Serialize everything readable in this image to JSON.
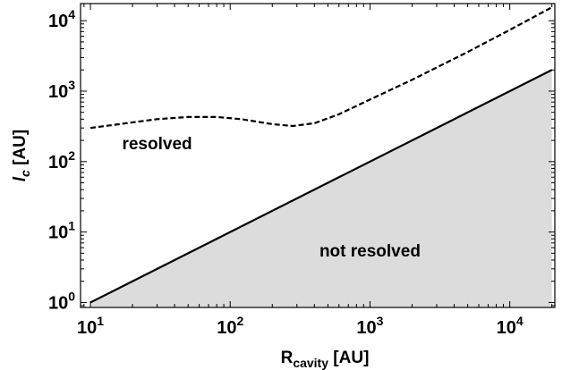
{
  "chart_data": {
    "type": "line",
    "xscale": "log",
    "yscale": "log",
    "xlim": [
      8.5,
      21000
    ],
    "ylim": [
      0.85,
      17500
    ],
    "xlabel": {
      "main": "R",
      "sub": "cavity",
      "unit": " [AU]"
    },
    "ylabel": {
      "main": "l",
      "sub": "c",
      "unit": " [AU]"
    },
    "x_ticks": [
      {
        "value": 10,
        "base": "10",
        "exp": "1"
      },
      {
        "value": 100,
        "base": "10",
        "exp": "2"
      },
      {
        "value": 1000,
        "base": "10",
        "exp": "3"
      },
      {
        "value": 10000,
        "base": "10",
        "exp": "4"
      }
    ],
    "y_ticks": [
      {
        "value": 1,
        "base": "10",
        "exp": "0"
      },
      {
        "value": 10,
        "base": "10",
        "exp": "1"
      },
      {
        "value": 100,
        "base": "10",
        "exp": "2"
      },
      {
        "value": 1000,
        "base": "10",
        "exp": "3"
      },
      {
        "value": 10000,
        "base": "10",
        "exp": "4"
      }
    ],
    "series": [
      {
        "style": "solid",
        "color": "#000000",
        "x": [
          10,
          20000
        ],
        "y": [
          1,
          2000
        ]
      },
      {
        "style": "dashed",
        "color": "#000000",
        "x": [
          10,
          20,
          30,
          50,
          80,
          120,
          200,
          280,
          400,
          600,
          1000,
          2000,
          5000,
          10000,
          20000
        ],
        "y": [
          300,
          360,
          400,
          430,
          430,
          400,
          340,
          320,
          350,
          470,
          760,
          1450,
          3600,
          7400,
          15500
        ]
      }
    ],
    "shaded_region": {
      "below_series": 0,
      "color": "#dcdcdc"
    },
    "annotations": [
      {
        "text": "resolved",
        "x": 30,
        "y": 150
      },
      {
        "text": "not resolved",
        "x": 1000,
        "y": 4.5
      }
    ],
    "grid": false
  }
}
